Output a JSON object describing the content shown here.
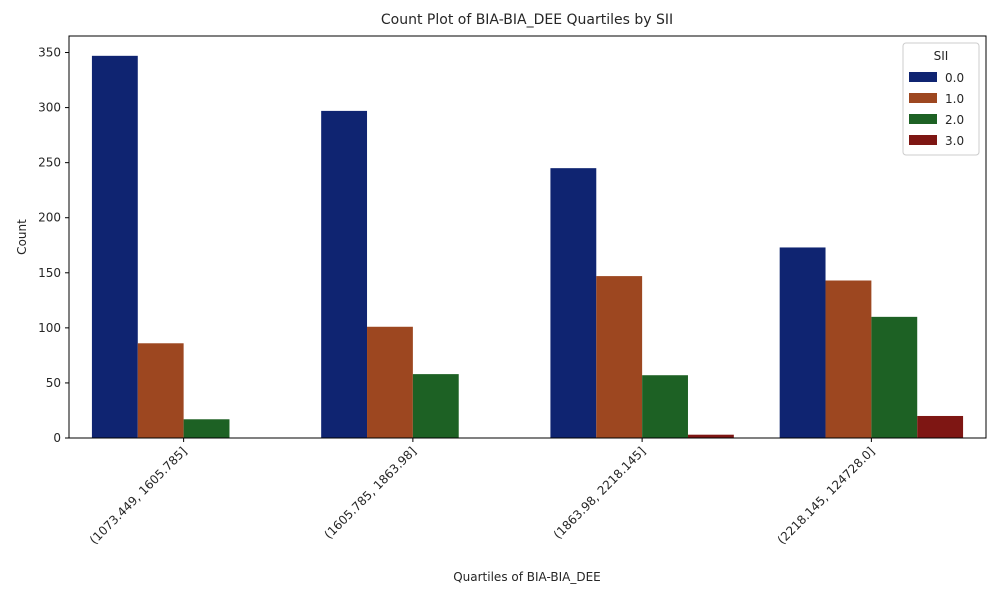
{
  "chart_data": {
    "type": "bar",
    "title": "Count Plot of BIA-BIA_DEE Quartiles by SII",
    "xlabel": "Quartiles of BIA-BIA_DEE",
    "ylabel": "Count",
    "categories": [
      "(1073.449, 1605.785]",
      "(1605.785, 1863.98]",
      "(1863.98, 2218.145]",
      "(2218.145, 124728.0]"
    ],
    "series": [
      {
        "name": "0.0",
        "color": "#0f2471",
        "values": [
          347,
          297,
          245,
          173
        ]
      },
      {
        "name": "1.0",
        "color": "#9d4720",
        "values": [
          86,
          101,
          147,
          143
        ]
      },
      {
        "name": "2.0",
        "color": "#1d6124",
        "values": [
          17,
          58,
          57,
          110
        ]
      },
      {
        "name": "3.0",
        "color": "#7e1613",
        "values": [
          0,
          0,
          3,
          20
        ]
      }
    ],
    "ylim": [
      0,
      365
    ],
    "yticks": [
      0,
      50,
      100,
      150,
      200,
      250,
      300,
      350
    ],
    "legend": {
      "title": "SII",
      "position": "top-right"
    },
    "grid": false
  }
}
